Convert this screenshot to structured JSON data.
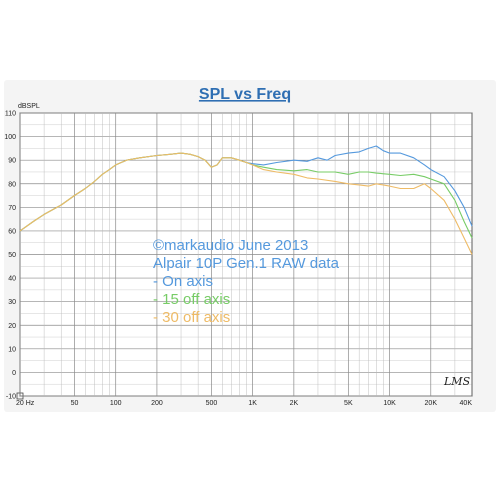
{
  "chart_data": {
    "type": "line",
    "title": "SPL vs Freq",
    "ylabel": "dBSPL",
    "xlabel": "",
    "x_scale": "log",
    "xlim": [
      20,
      40000
    ],
    "ylim": [
      -10,
      110
    ],
    "grid": true,
    "y_ticks": [
      -10,
      0,
      10,
      20,
      30,
      40,
      50,
      60,
      70,
      80,
      90,
      100,
      110
    ],
    "x_ticks": [
      {
        "value": 20,
        "label": "20 Hz"
      },
      {
        "value": 50,
        "label": "50"
      },
      {
        "value": 100,
        "label": "100"
      },
      {
        "value": 200,
        "label": "200"
      },
      {
        "value": 500,
        "label": "500"
      },
      {
        "value": 1000,
        "label": "1K"
      },
      {
        "value": 2000,
        "label": "2K"
      },
      {
        "value": 5000,
        "label": "5K"
      },
      {
        "value": 10000,
        "label": "10K"
      },
      {
        "value": 20000,
        "label": "20K"
      },
      {
        "value": 40000,
        "label": "40K"
      }
    ],
    "annotations": [
      "©markaudio June 2013",
      "Alpair 10P Gen.1 RAW data",
      " - On axis",
      " - 15 off axis",
      " - 30 off axis"
    ],
    "signature": "LMS",
    "series": [
      {
        "name": "On axis",
        "color": "#5599dd",
        "points": [
          [
            20,
            60
          ],
          [
            25,
            64
          ],
          [
            30,
            67
          ],
          [
            40,
            71
          ],
          [
            50,
            75
          ],
          [
            60,
            78
          ],
          [
            70,
            81
          ],
          [
            80,
            84
          ],
          [
            90,
            86
          ],
          [
            100,
            88
          ],
          [
            120,
            90
          ],
          [
            150,
            91
          ],
          [
            200,
            92
          ],
          [
            250,
            92.5
          ],
          [
            300,
            93
          ],
          [
            350,
            92.5
          ],
          [
            400,
            91.5
          ],
          [
            450,
            90
          ],
          [
            500,
            87
          ],
          [
            550,
            88
          ],
          [
            600,
            91
          ],
          [
            700,
            91
          ],
          [
            800,
            90
          ],
          [
            900,
            89
          ],
          [
            1000,
            88.5
          ],
          [
            1200,
            88
          ],
          [
            1500,
            89
          ],
          [
            2000,
            90
          ],
          [
            2500,
            89.5
          ],
          [
            3000,
            91
          ],
          [
            3500,
            90
          ],
          [
            4000,
            92
          ],
          [
            5000,
            93
          ],
          [
            6000,
            93.5
          ],
          [
            7000,
            95
          ],
          [
            8000,
            96
          ],
          [
            9000,
            94
          ],
          [
            10000,
            93
          ],
          [
            12000,
            93
          ],
          [
            15000,
            91
          ],
          [
            18000,
            88
          ],
          [
            20000,
            86
          ],
          [
            25000,
            83
          ],
          [
            30000,
            77
          ],
          [
            35000,
            70
          ],
          [
            40000,
            62
          ]
        ]
      },
      {
        "name": "15 off axis",
        "color": "#77cc66",
        "points": [
          [
            20,
            60
          ],
          [
            25,
            64
          ],
          [
            30,
            67
          ],
          [
            40,
            71
          ],
          [
            50,
            75
          ],
          [
            60,
            78
          ],
          [
            70,
            81
          ],
          [
            80,
            84
          ],
          [
            90,
            86
          ],
          [
            100,
            88
          ],
          [
            120,
            90
          ],
          [
            150,
            91
          ],
          [
            200,
            92
          ],
          [
            250,
            92.5
          ],
          [
            300,
            93
          ],
          [
            350,
            92.5
          ],
          [
            400,
            91.5
          ],
          [
            450,
            90
          ],
          [
            500,
            87
          ],
          [
            550,
            88
          ],
          [
            600,
            91
          ],
          [
            700,
            91
          ],
          [
            800,
            90
          ],
          [
            900,
            89
          ],
          [
            1000,
            88
          ],
          [
            1200,
            87
          ],
          [
            1500,
            86
          ],
          [
            2000,
            85.5
          ],
          [
            2500,
            86
          ],
          [
            3000,
            85
          ],
          [
            4000,
            85
          ],
          [
            5000,
            84
          ],
          [
            6000,
            85
          ],
          [
            7000,
            85
          ],
          [
            8000,
            84.5
          ],
          [
            10000,
            84
          ],
          [
            12000,
            83.5
          ],
          [
            15000,
            84
          ],
          [
            18000,
            83
          ],
          [
            20000,
            82
          ],
          [
            25000,
            80
          ],
          [
            30000,
            73
          ],
          [
            35000,
            64
          ],
          [
            40000,
            57
          ]
        ]
      },
      {
        "name": "30 off axis",
        "color": "#eebb66",
        "points": [
          [
            20,
            60
          ],
          [
            25,
            64
          ],
          [
            30,
            67
          ],
          [
            40,
            71
          ],
          [
            50,
            75
          ],
          [
            60,
            78
          ],
          [
            70,
            81
          ],
          [
            80,
            84
          ],
          [
            90,
            86
          ],
          [
            100,
            88
          ],
          [
            120,
            90
          ],
          [
            150,
            91
          ],
          [
            200,
            92
          ],
          [
            250,
            92.5
          ],
          [
            300,
            93
          ],
          [
            350,
            92.5
          ],
          [
            400,
            91.5
          ],
          [
            450,
            90
          ],
          [
            500,
            87
          ],
          [
            550,
            88
          ],
          [
            600,
            91
          ],
          [
            700,
            91
          ],
          [
            800,
            90
          ],
          [
            900,
            89
          ],
          [
            1000,
            88
          ],
          [
            1200,
            86
          ],
          [
            1500,
            85
          ],
          [
            2000,
            84
          ],
          [
            2500,
            82.5
          ],
          [
            3000,
            82
          ],
          [
            4000,
            81
          ],
          [
            5000,
            80
          ],
          [
            6000,
            79.5
          ],
          [
            7000,
            79
          ],
          [
            8000,
            80
          ],
          [
            10000,
            79
          ],
          [
            12000,
            78
          ],
          [
            15000,
            78
          ],
          [
            18000,
            80
          ],
          [
            20000,
            78
          ],
          [
            25000,
            73
          ],
          [
            30000,
            65
          ],
          [
            35000,
            57
          ],
          [
            40000,
            50
          ]
        ]
      }
    ]
  }
}
